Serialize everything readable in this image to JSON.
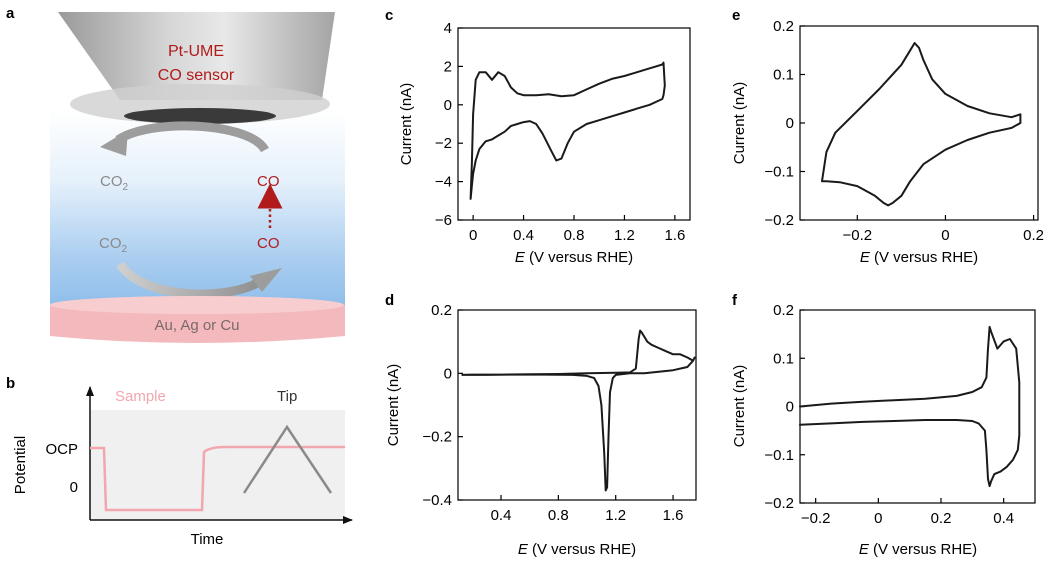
{
  "panel_a": {
    "label": "a",
    "sensor_line1": "Pt-UME",
    "sensor_line2": "CO sensor",
    "co2_top": "CO",
    "co2_top_sub": "2",
    "co_top": "CO",
    "co2_bottom": "CO",
    "co2_bottom_sub": "2",
    "co_bottom": "CO",
    "substrate": "Au, Ag or Cu",
    "colors": {
      "co_red": "#b11b1b",
      "substrate": "#f4b9bd",
      "gray_text": "#8a8a8a"
    }
  },
  "panel_b": {
    "label": "b",
    "sample_label": "Sample",
    "tip_label": "Tip",
    "ylabel": "Potential",
    "xlabel": "Time",
    "ytick_ocp": "OCP",
    "ytick_zero": "0",
    "colors": {
      "sample": "#f2a6ad",
      "tip": "#8a8a8a"
    }
  },
  "chart_data": [
    {
      "id": "c",
      "label": "c",
      "type": "line",
      "xlabel_italic": "E",
      "xlabel_rest": " (V versus RHE)",
      "ylabel": "Current (nA)",
      "xlim": [
        -0.12,
        1.72
      ],
      "ylim": [
        -6,
        4
      ],
      "xticks": [
        0,
        0.4,
        0.8,
        1.2,
        1.6
      ],
      "xtick_labels": [
        "0",
        "0.4",
        "0.8",
        "1.2",
        "1.6"
      ],
      "yticks": [
        -6,
        -4,
        -2,
        0,
        2,
        4
      ],
      "ytick_labels": [
        "−6",
        "−4",
        "−2",
        "0",
        "2",
        "4"
      ],
      "series": [
        {
          "name": "CV",
          "x": [
            -0.02,
            -0.01,
            0.0,
            0.02,
            0.05,
            0.1,
            0.15,
            0.2,
            0.25,
            0.3,
            0.35,
            0.4,
            0.5,
            0.6,
            0.7,
            0.8,
            0.9,
            1.0,
            1.1,
            1.2,
            1.3,
            1.4,
            1.45,
            1.5,
            1.51,
            1.52,
            1.51,
            1.5,
            1.45,
            1.4,
            1.3,
            1.2,
            1.1,
            1.0,
            0.9,
            0.8,
            0.75,
            0.7,
            0.66,
            0.62,
            0.55,
            0.5,
            0.45,
            0.4,
            0.35,
            0.3,
            0.25,
            0.2,
            0.15,
            0.1,
            0.05,
            0.02,
            0.0,
            -0.01,
            -0.02
          ],
          "y": [
            -4.9,
            -3.0,
            -0.5,
            1.3,
            1.7,
            1.7,
            1.3,
            1.7,
            1.5,
            0.9,
            0.6,
            0.5,
            0.5,
            0.55,
            0.45,
            0.5,
            0.8,
            1.1,
            1.35,
            1.5,
            1.7,
            1.9,
            2.0,
            2.1,
            2.2,
            1.0,
            0.5,
            0.3,
            0.15,
            0.0,
            -0.2,
            -0.4,
            -0.6,
            -0.8,
            -1.0,
            -1.4,
            -2.0,
            -2.8,
            -2.9,
            -2.4,
            -1.5,
            -1.0,
            -0.85,
            -0.9,
            -1.0,
            -1.1,
            -1.4,
            -1.6,
            -1.8,
            -1.9,
            -2.3,
            -2.9,
            -3.6,
            -4.2,
            -4.9
          ]
        }
      ]
    },
    {
      "id": "d",
      "label": "d",
      "type": "line",
      "xlabel_italic": "E",
      "xlabel_rest": " (V versus RHE)",
      "ylabel": "Current (nA)",
      "xlim": [
        0.1,
        1.76
      ],
      "ylim": [
        -0.4,
        0.2
      ],
      "xticks": [
        0.4,
        0.8,
        1.2,
        1.6
      ],
      "xtick_labels": [
        "0.4",
        "0.8",
        "1.2",
        "1.6"
      ],
      "yticks": [
        -0.4,
        -0.2,
        0,
        0.2
      ],
      "ytick_labels": [
        "−0.4",
        "−0.2",
        "0",
        "0.2"
      ],
      "series": [
        {
          "name": "CV",
          "x": [
            0.13,
            0.3,
            0.5,
            0.7,
            0.9,
            1.0,
            1.05,
            1.08,
            1.1,
            1.12,
            1.13,
            1.14,
            1.15,
            1.16,
            1.18,
            1.2,
            1.3,
            1.4,
            1.5,
            1.6,
            1.7,
            1.74,
            1.75,
            1.74,
            1.72,
            1.7,
            1.65,
            1.6,
            1.55,
            1.5,
            1.45,
            1.42,
            1.4,
            1.38,
            1.37,
            1.36,
            1.35,
            1.34,
            1.3,
            1.2,
            1.0,
            0.8,
            0.6,
            0.4,
            0.2,
            0.13
          ],
          "y": [
            -0.005,
            -0.005,
            -0.004,
            -0.004,
            -0.005,
            -0.008,
            -0.015,
            -0.04,
            -0.1,
            -0.25,
            -0.37,
            -0.36,
            -0.2,
            -0.06,
            -0.015,
            -0.005,
            0.0,
            0.0,
            0.005,
            0.01,
            0.02,
            0.04,
            0.05,
            0.04,
            0.045,
            0.05,
            0.06,
            0.06,
            0.07,
            0.08,
            0.09,
            0.1,
            0.115,
            0.13,
            0.135,
            0.11,
            0.06,
            0.015,
            0.003,
            0.002,
            0.0,
            -0.002,
            -0.003,
            -0.004,
            -0.004,
            -0.005
          ]
        }
      ]
    },
    {
      "id": "e",
      "label": "e",
      "type": "line",
      "xlabel_italic": "E",
      "xlabel_rest": " (V versus RHE)",
      "ylabel": "Current (nA)",
      "xlim": [
        -0.33,
        0.21
      ],
      "ylim": [
        -0.2,
        0.2
      ],
      "xticks": [
        -0.2,
        0,
        0.2
      ],
      "xtick_labels": [
        "−0.2",
        "0",
        "0.2"
      ],
      "yticks": [
        -0.2,
        -0.1,
        0,
        0.1,
        0.2
      ],
      "ytick_labels": [
        "−0.2",
        "−0.1",
        "0",
        "0.1",
        "0.2"
      ],
      "series": [
        {
          "name": "CV",
          "x": [
            -0.28,
            -0.27,
            -0.25,
            -0.2,
            -0.15,
            -0.1,
            -0.08,
            -0.07,
            -0.06,
            -0.05,
            -0.03,
            0.0,
            0.05,
            0.1,
            0.15,
            0.17,
            0.17,
            0.15,
            0.1,
            0.05,
            0.0,
            -0.05,
            -0.08,
            -0.1,
            -0.12,
            -0.13,
            -0.14,
            -0.16,
            -0.2,
            -0.24,
            -0.27,
            -0.28
          ],
          "y": [
            -0.12,
            -0.06,
            -0.02,
            0.025,
            0.07,
            0.12,
            0.15,
            0.165,
            0.155,
            0.13,
            0.09,
            0.06,
            0.035,
            0.02,
            0.012,
            0.018,
            0.0,
            -0.01,
            -0.02,
            -0.035,
            -0.055,
            -0.085,
            -0.12,
            -0.15,
            -0.165,
            -0.17,
            -0.165,
            -0.15,
            -0.13,
            -0.122,
            -0.12,
            -0.12
          ]
        }
      ]
    },
    {
      "id": "f",
      "label": "f",
      "type": "line",
      "xlabel_italic": "E",
      "xlabel_rest": " (V versus RHE)",
      "ylabel": "Current (nA)",
      "xlim": [
        -0.25,
        0.5
      ],
      "ylim": [
        -0.2,
        0.2
      ],
      "xticks": [
        -0.2,
        0,
        0.2,
        0.4
      ],
      "xtick_labels": [
        "−0.2",
        "0",
        "0.2",
        "0.4"
      ],
      "yticks": [
        -0.2,
        -0.1,
        0,
        0.1,
        0.2
      ],
      "ytick_labels": [
        "−0.2",
        "−0.1",
        "0",
        "0.1",
        "0.2"
      ],
      "series": [
        {
          "name": "CV",
          "x": [
            -0.25,
            -0.15,
            -0.05,
            0.05,
            0.15,
            0.25,
            0.3,
            0.33,
            0.345,
            0.35,
            0.355,
            0.36,
            0.38,
            0.4,
            0.42,
            0.44,
            0.45,
            0.45,
            0.445,
            0.43,
            0.41,
            0.39,
            0.37,
            0.36,
            0.355,
            0.35,
            0.345,
            0.34,
            0.32,
            0.3,
            0.25,
            0.15,
            0.05,
            -0.05,
            -0.15,
            -0.25
          ],
          "y": [
            0.0,
            0.006,
            0.01,
            0.013,
            0.016,
            0.022,
            0.03,
            0.04,
            0.06,
            0.12,
            0.165,
            0.155,
            0.12,
            0.135,
            0.14,
            0.12,
            0.05,
            -0.06,
            -0.09,
            -0.11,
            -0.125,
            -0.135,
            -0.14,
            -0.155,
            -0.165,
            -0.15,
            -0.09,
            -0.05,
            -0.035,
            -0.03,
            -0.028,
            -0.028,
            -0.03,
            -0.032,
            -0.035,
            -0.038
          ]
        }
      ]
    }
  ]
}
